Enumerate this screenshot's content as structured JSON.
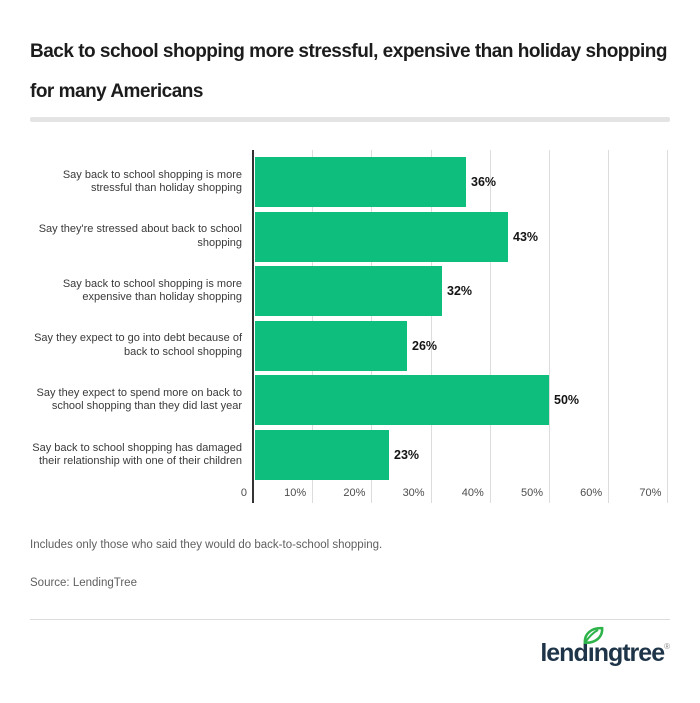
{
  "header": {
    "title": "Back to school shopping more stressful, expensive than holiday shopping\nfor many Americans"
  },
  "chart_data": {
    "type": "bar",
    "orientation": "horizontal",
    "title": "Back to school shopping more stressful, expensive than holiday shopping for many Americans",
    "categories": [
      "Say back to school shopping is more stressful than holiday shopping",
      "Say they're stressed about back to school shopping",
      "Say back to school shopping is more expensive than holiday shopping",
      "Say they expect to go into debt because of back to school shopping",
      "Say they expect to spend more on back to school shopping than they did last year",
      "Say back to school shopping has damaged their relationship with one of their children"
    ],
    "values": [
      36,
      43,
      32,
      26,
      50,
      23
    ],
    "value_labels": [
      "36%",
      "43%",
      "32%",
      "26%",
      "50%",
      "23%"
    ],
    "x_ticks": [
      "0",
      "10%",
      "20%",
      "30%",
      "40%",
      "50%",
      "60%",
      "70%"
    ],
    "xlim": [
      0,
      75
    ],
    "grid": true,
    "legend": false,
    "bar_color": "#0dbe7c"
  },
  "footer": {
    "note": "Includes only those who said they would do back-to-school shopping.",
    "source": "Source: LendingTree",
    "logo": {
      "text": "lendingtree",
      "pre": "lend",
      "i": "ı",
      "post": "ngtree",
      "mark": "®"
    }
  },
  "colors": {
    "background": "#ffffff",
    "bar": "#0dbe7c",
    "axis": "#333333",
    "grid": "#dcdcdc",
    "title": "#1c1c1c",
    "category_label": "#3a3a3a",
    "value_label": "#141414",
    "tick_label": "#4d4d4d",
    "note": "#5f5f5f",
    "divider_thick": "#e4e4e4",
    "divider_thin": "#dcdcdc",
    "logo_navy": "#1e3448",
    "logo_leaf": "#2eb34b"
  }
}
